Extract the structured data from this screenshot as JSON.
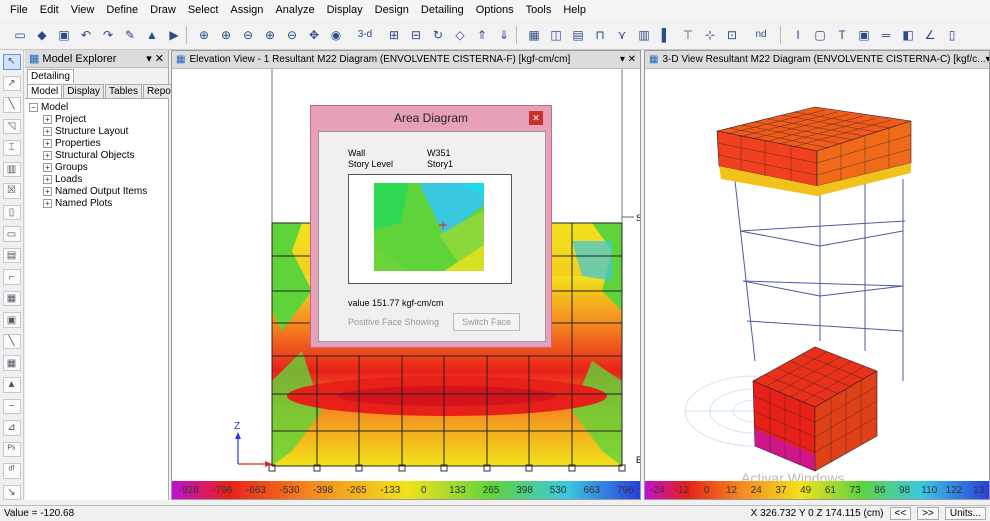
{
  "menu": [
    "File",
    "Edit",
    "View",
    "Define",
    "Draw",
    "Select",
    "Assign",
    "Analyze",
    "Display",
    "Design",
    "Detailing",
    "Options",
    "Tools",
    "Help"
  ],
  "toolbar": {
    "icons": [
      "new-icon",
      "open-icon",
      "save-icon",
      "undo-icon",
      "redo-icon",
      "pencil-icon",
      "lock-icon",
      "run-icon",
      "zoom-window-icon",
      "zoom-in-icon",
      "zoom-out-icon",
      "zoom-restore-icon",
      "zoom-previous-icon",
      "pan-icon",
      "3d-view-icon",
      "plan-view-icon",
      "elevation-view-icon",
      "rotate-icon",
      "perspective-icon",
      "move-up-icon",
      "move-down-icon",
      "display-icon",
      "deformed-shape-icon",
      "forces-icon",
      "frame-icon",
      "wall-icon",
      "floor-icon",
      "column-icon",
      "measure-icon",
      "grid-icon",
      "text-icon",
      "rectangle-icon",
      "beam-icon",
      "wall-draw-icon",
      "line-icon",
      "shell-icon",
      "area-icon",
      "point-icon"
    ],
    "labels": [
      "3-d",
      "nd"
    ]
  },
  "left_tools": [
    "pointer-icon",
    "reshape-icon",
    "draw-line-icon",
    "draw-area-icon",
    "draw-column-icon",
    "draw-wall-icon",
    "draw-rect-icon",
    "select-all-icon",
    "get-previous-icon",
    "clear-icon",
    "intersect-icon",
    "snap-icon",
    "grid-snap-icon",
    "end-icon",
    "perpendicular-icon",
    "wall-stack-icon",
    "pier-icon",
    "spandrel-icon",
    "ps-icon",
    "fix-icon",
    "lp-icon"
  ],
  "explorer": {
    "title": "Model Explorer",
    "subtitle": "Detailing",
    "tabs": [
      "Model",
      "Display",
      "Tables",
      "Reports"
    ],
    "root": "Model",
    "children": [
      "Project",
      "Structure Layout",
      "Properties",
      "Structural Objects",
      "Groups",
      "Loads",
      "Named Output Items",
      "Named Plots"
    ]
  },
  "elevation": {
    "title": "Elevation View - 1  Resultant M22 Diagram  (ENVOLVENTE CISTERNA-F) [kgf-cm/cm]",
    "story_label": "S",
    "base_label": "B",
    "axis_z": "Z",
    "axis_x": "X",
    "colorbar": [
      "-928",
      "-796",
      "-663",
      "-530",
      "-398",
      "-265",
      "-133",
      "0",
      "133",
      "265",
      "398",
      "530",
      "663",
      "796"
    ]
  },
  "view3d": {
    "title": "3-D View  Resultant M22 Diagram  (ENVOLVENTE CISTERNA-C) [kgf/c...",
    "watermark": "Activar Windows",
    "colorbar": [
      "-24",
      "-12",
      "0",
      "12",
      "24",
      "37",
      "49",
      "61",
      "73",
      "86",
      "98",
      "110",
      "122",
      "13"
    ]
  },
  "dialog": {
    "title": "Area Diagram",
    "wall_label": "Wall",
    "wall_value": "W351",
    "story_label": "Story Level",
    "story_value": "Story1",
    "value_text": "value 151.77 kgf-cm/cm",
    "face_text": "Positive Face Showing",
    "switch_button": "Switch Face"
  },
  "status": {
    "left": "Value = -120.68",
    "coords": "X 326.732  Y 0  Z 174.115 (cm)",
    "prev": "<<",
    "next": ">>",
    "units": "Units..."
  },
  "colors": {
    "red": "#e8201a",
    "orange": "#f58a1e",
    "yellow": "#f2e21c",
    "green": "#5fd43a",
    "cyan": "#3ac8e0",
    "blue": "#2a3ae0",
    "magenta": "#c010d0",
    "dialog_border": "#e8a0b8"
  }
}
